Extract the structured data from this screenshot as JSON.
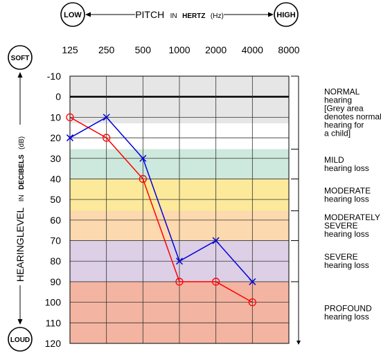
{
  "header": {
    "low_label": "LOW",
    "high_label": "HIGH",
    "pitch_word": "PITCH",
    "in_word": "IN",
    "unit_word": "HERTZ",
    "unit_abbrev": "(Hz)"
  },
  "side": {
    "soft_label": "SOFT",
    "loud_label": "LOUD",
    "level_word": "HEARINGLEVEL",
    "in_word": "IN",
    "unit_word": "DECIBELS",
    "unit_abbrev": "(dB)"
  },
  "chart_data": {
    "type": "line",
    "x": [
      "125",
      "250",
      "500",
      "1000",
      "2000",
      "4000",
      "8000"
    ],
    "y_ticks": [
      "-10",
      "0",
      "10",
      "20",
      "30",
      "40",
      "50",
      "60",
      "70",
      "80",
      "90",
      "100",
      "110",
      "120"
    ],
    "ylim": [
      -10,
      120
    ],
    "y_inverted": true,
    "grid": true,
    "bands": [
      {
        "from": -10,
        "to": 13,
        "color": "#e6e6e6"
      },
      {
        "from": 13,
        "to": 15.5,
        "color": "#ffffff"
      },
      {
        "from": 25.5,
        "to": 40,
        "color": "#cde8dc"
      },
      {
        "from": 40,
        "to": 55.5,
        "color": "#fce99a"
      },
      {
        "from": 55.5,
        "to": 70,
        "color": "#fcd9ae"
      },
      {
        "from": 70,
        "to": 90,
        "color": "#dccfe6"
      },
      {
        "from": 90,
        "to": 120,
        "color": "#f4b4a2"
      }
    ],
    "series": [
      {
        "marker": "circle",
        "color": "#ff0000",
        "values": [
          10,
          20,
          40,
          90,
          90,
          100,
          null
        ]
      },
      {
        "marker": "cross",
        "color": "#0000dd",
        "values": [
          20,
          10,
          30,
          80,
          70,
          90,
          null
        ]
      }
    ],
    "categories_right": [
      {
        "from": -10,
        "to": 25.5,
        "title": "NORMAL",
        "lines": [
          "hearing",
          "[Grey area",
          "denotes normal",
          "hearing for",
          "a child]"
        ]
      },
      {
        "from": 25.5,
        "to": 40,
        "title": "MILD",
        "lines": [
          "hearing loss"
        ]
      },
      {
        "from": 40,
        "to": 55.5,
        "title": "MODERATE",
        "lines": [
          "hearing loss"
        ]
      },
      {
        "from": 55.5,
        "to": 70,
        "title": "MODERATELY",
        "lines": [
          "SEVERE",
          "hearing loss"
        ]
      },
      {
        "from": 70,
        "to": 90,
        "title": "SEVERE",
        "lines": [
          "hearing loss"
        ]
      },
      {
        "from": 90,
        "to": 120,
        "title": "PROFOUND",
        "lines": [
          "hearing loss"
        ]
      }
    ]
  }
}
